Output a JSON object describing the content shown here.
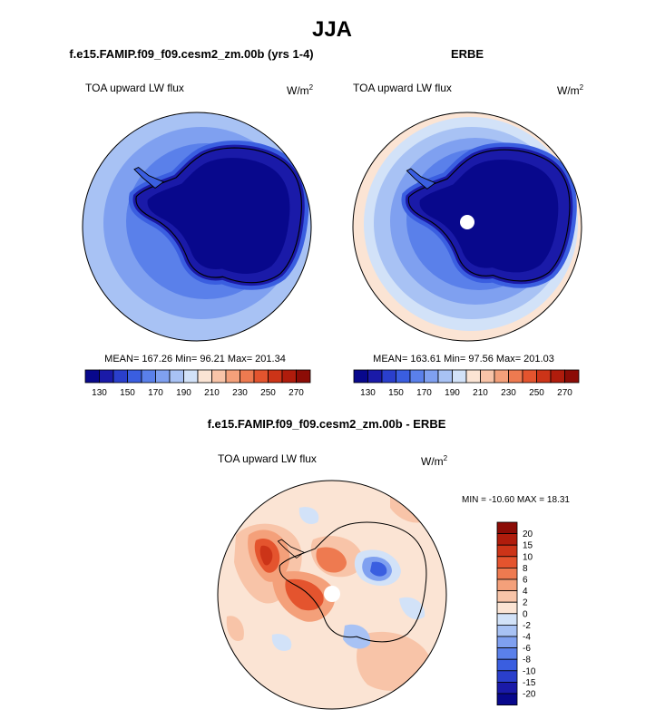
{
  "chart_data": [
    {
      "type": "heatmap",
      "projection": "south-polar-stereographic",
      "figure_title": "JJA",
      "title": "f.e15.FAMIP.f09_f09.cesm2_zm.00b (yrs 1-4)",
      "variable": "TOA upward LW flux",
      "units_base": "W/m",
      "units_exp": "2",
      "stats": "MEAN= 167.26  Min=  96.21  Max= 201.34",
      "mean": 167.26,
      "min": 96.21,
      "max": 201.34,
      "colorbar": {
        "orientation": "horizontal",
        "levels": [
          130,
          140,
          150,
          160,
          170,
          180,
          190,
          200,
          210,
          220,
          230,
          240,
          250,
          260,
          270
        ],
        "tick_labels": [
          "130",
          "150",
          "170",
          "190",
          "210",
          "230",
          "250",
          "270"
        ],
        "colors": [
          "#08088c",
          "#1a1aa8",
          "#2a3fcc",
          "#3a5ee0",
          "#5a80ea",
          "#7fa0f0",
          "#a8c2f4",
          "#d2e2f8",
          "#fbe4d4",
          "#f8c4a8",
          "#f4a07a",
          "#ee7a50",
          "#e4542e",
          "#cc3418",
          "#b01c0c",
          "#8c0c06"
        ]
      },
      "colors": {
        "ocean_outer": "#a8c2f4",
        "ocean_mid": "#7fa0f0",
        "ice_edge": "#5a80ea",
        "coast_ring": "#3a5ee0",
        "inner_ring": "#1a1aa8",
        "interior": "#08088c"
      }
    },
    {
      "type": "heatmap",
      "projection": "south-polar-stereographic",
      "title": "ERBE",
      "variable": "TOA upward LW flux",
      "units_base": "W/m",
      "units_exp": "2",
      "stats": "MEAN= 163.61  Min=  97.56  Max= 201.03",
      "mean": 163.61,
      "min": 97.56,
      "max": 201.03,
      "colorbar": {
        "orientation": "horizontal",
        "levels": [
          130,
          140,
          150,
          160,
          170,
          180,
          190,
          200,
          210,
          220,
          230,
          240,
          250,
          260,
          270
        ],
        "tick_labels": [
          "130",
          "150",
          "170",
          "190",
          "210",
          "230",
          "250",
          "270"
        ],
        "colors": [
          "#08088c",
          "#1a1aa8",
          "#2a3fcc",
          "#3a5ee0",
          "#5a80ea",
          "#7fa0f0",
          "#a8c2f4",
          "#d2e2f8",
          "#fbe4d4",
          "#f8c4a8",
          "#f4a07a",
          "#ee7a50",
          "#e4542e",
          "#cc3418",
          "#b01c0c",
          "#8c0c06"
        ]
      },
      "colors": {
        "ocean_outer": "#a8c2f4",
        "ocean_mid": "#7fa0f0",
        "ice_edge": "#5a80ea",
        "coast_ring": "#3a5ee0",
        "inner_ring": "#1a1aa8",
        "interior": "#08088c",
        "rim": "#fbe4d4"
      }
    },
    {
      "type": "heatmap",
      "projection": "south-polar-stereographic",
      "title": "f.e15.FAMIP.f09_f09.cesm2_zm.00b - ERBE",
      "variable": "TOA upward LW flux",
      "units_base": "W/m",
      "units_exp": "2",
      "stats": "MIN = -10.60 MAX =  18.31",
      "min": -10.6,
      "max": 18.31,
      "colorbar": {
        "orientation": "vertical",
        "tick_labels": [
          "20",
          "15",
          "10",
          "8",
          "6",
          "4",
          "2",
          "0",
          "-2",
          "-4",
          "-6",
          "-8",
          "-10",
          "-15",
          "-20"
        ],
        "colors": [
          "#8c0c06",
          "#b01c0c",
          "#cc3418",
          "#e4542e",
          "#ee7a50",
          "#f4a07a",
          "#f8c4a8",
          "#fbe4d4",
          "#d2e2f8",
          "#a8c2f4",
          "#7fa0f0",
          "#5a80ea",
          "#3a5ee0",
          "#2a3fcc",
          "#1a1aa8",
          "#08088c"
        ]
      },
      "colors": {
        "background": "#fbe4d4",
        "warm": "#f8c4a8",
        "warmer": "#f4a07a",
        "hot": "#e4542e",
        "hotter": "#cc3418",
        "cool": "#d2e2f8",
        "cold": "#7fa0f0",
        "colder": "#3a5ee0"
      }
    }
  ]
}
